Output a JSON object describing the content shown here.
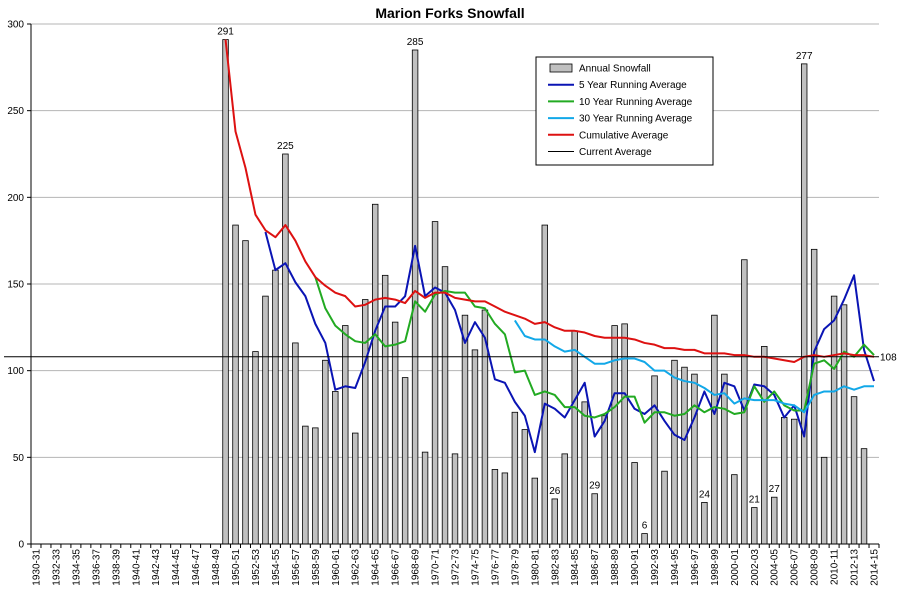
{
  "chart_data": {
    "type": "bar",
    "title": "Marion Forks Snowfall",
    "xlabel": "",
    "ylabel": "",
    "ylim": [
      0,
      300
    ],
    "yticks": [
      0,
      50,
      100,
      150,
      200,
      250,
      300
    ],
    "seasons": [
      "1930-31",
      "1931-32",
      "1932-33",
      "1933-34",
      "1934-35",
      "1935-36",
      "1936-37",
      "1937-38",
      "1938-39",
      "1939-40",
      "1940-41",
      "1941-42",
      "1942-43",
      "1943-44",
      "1944-45",
      "1945-46",
      "1946-47",
      "1947-48",
      "1948-49",
      "1949-50",
      "1950-51",
      "1951-52",
      "1952-53",
      "1953-54",
      "1954-55",
      "1955-56",
      "1956-57",
      "1957-58",
      "1958-59",
      "1959-60",
      "1960-61",
      "1961-62",
      "1962-63",
      "1963-64",
      "1964-65",
      "1965-66",
      "1966-67",
      "1967-68",
      "1968-69",
      "1969-70",
      "1970-71",
      "1971-72",
      "1972-73",
      "1973-74",
      "1974-75",
      "1975-76",
      "1976-77",
      "1977-78",
      "1978-79",
      "1979-80",
      "1980-81",
      "1981-82",
      "1982-83",
      "1983-84",
      "1984-85",
      "1985-86",
      "1986-87",
      "1987-88",
      "1988-89",
      "1989-90",
      "1990-91",
      "1991-92",
      "1992-93",
      "1993-94",
      "1994-95",
      "1995-96",
      "1996-97",
      "1997-98",
      "1998-99",
      "1999-00",
      "2000-01",
      "2001-02",
      "2002-03",
      "2003-04",
      "2004-05",
      "2005-06",
      "2006-07",
      "2007-08",
      "2008-09",
      "2009-10",
      "2010-11",
      "2011-12",
      "2012-13",
      "2013-14",
      "2014-15"
    ],
    "tick_labels": [
      "1930-31",
      "1932-33",
      "1934-35",
      "1936-37",
      "1938-39",
      "1940-41",
      "1942-43",
      "1944-45",
      "1946-47",
      "1948-49",
      "1950-51",
      "1952-53",
      "1954-55",
      "1956-57",
      "1958-59",
      "1960-61",
      "1962-63",
      "1964-65",
      "1966-67",
      "1968-69",
      "1970-71",
      "1972-73",
      "1974-75",
      "1976-77",
      "1978-79",
      "1980-81",
      "1982-83",
      "1984-85",
      "1986-87",
      "1988-89",
      "1990-91",
      "1992-93",
      "1994-95",
      "1996-97",
      "1998-99",
      "2000-01",
      "2002-03",
      "2004-05",
      "2006-07",
      "2008-09",
      "2010-11",
      "2012-13",
      "2014-15"
    ],
    "series": [
      {
        "name": "Annual Snowfall",
        "kind": "bar",
        "color": "#c0c0c0",
        "values": [
          null,
          null,
          null,
          null,
          null,
          null,
          null,
          null,
          null,
          null,
          null,
          null,
          null,
          null,
          null,
          null,
          null,
          null,
          null,
          291,
          184,
          175,
          111,
          143,
          158,
          225,
          116,
          68,
          67,
          106,
          88,
          126,
          64,
          141,
          196,
          155,
          128,
          96,
          285,
          53,
          186,
          160,
          52,
          132,
          112,
          135,
          43,
          41,
          76,
          66,
          38,
          184,
          26,
          52,
          123,
          82,
          29,
          74,
          126,
          127,
          47,
          6,
          97,
          42,
          106,
          102,
          98,
          24,
          132,
          98,
          40,
          164,
          21,
          114,
          27,
          73,
          72,
          277,
          170,
          50,
          143,
          138,
          85,
          55,
          null
        ]
      },
      {
        "name": "5 Year Running Average",
        "kind": "line",
        "color": "#0a14b4",
        "values": [
          null,
          null,
          null,
          null,
          null,
          null,
          null,
          null,
          null,
          null,
          null,
          null,
          null,
          null,
          null,
          null,
          null,
          null,
          null,
          null,
          null,
          null,
          null,
          180,
          158,
          162,
          151,
          143,
          127,
          116,
          89,
          91,
          90,
          105,
          123,
          137,
          137,
          143,
          172,
          143,
          148,
          145,
          135,
          116,
          128,
          119,
          95,
          93,
          82,
          74,
          53,
          81,
          78,
          73,
          83,
          93,
          62,
          71,
          87,
          87,
          78,
          75,
          80,
          71,
          63,
          60,
          73,
          88,
          75,
          93,
          91,
          77,
          92,
          91,
          86,
          73,
          80,
          62,
          111,
          124,
          129,
          141,
          155,
          112,
          94
        ]
      },
      {
        "name": "10 Year Running Average",
        "kind": "line",
        "color": "#22aa22",
        "values": [
          null,
          null,
          null,
          null,
          null,
          null,
          null,
          null,
          null,
          null,
          null,
          null,
          null,
          null,
          null,
          null,
          null,
          null,
          null,
          null,
          null,
          null,
          null,
          null,
          null,
          null,
          null,
          null,
          154,
          136,
          126,
          121,
          117,
          116,
          121,
          114,
          115,
          117,
          140,
          134,
          144,
          146,
          145,
          145,
          137,
          136,
          127,
          121,
          99,
          100,
          86,
          88,
          86,
          79,
          79,
          74,
          73,
          75,
          79,
          85,
          85,
          70,
          76,
          76,
          74,
          75,
          80,
          76,
          79,
          78,
          75,
          76,
          91,
          82,
          88,
          80,
          77,
          77,
          104,
          106,
          101,
          111,
          108,
          115,
          109
        ]
      },
      {
        "name": "30 Year Running Average",
        "kind": "line",
        "color": "#12a8e8",
        "values": [
          null,
          null,
          null,
          null,
          null,
          null,
          null,
          null,
          null,
          null,
          null,
          null,
          null,
          null,
          null,
          null,
          null,
          null,
          null,
          null,
          null,
          null,
          null,
          null,
          null,
          null,
          null,
          null,
          null,
          null,
          null,
          null,
          null,
          null,
          null,
          null,
          null,
          null,
          null,
          null,
          null,
          null,
          null,
          null,
          null,
          null,
          null,
          null,
          129,
          120,
          118,
          118,
          114,
          111,
          112,
          108,
          104,
          104,
          106,
          107,
          107,
          105,
          100,
          100,
          96,
          94,
          93,
          90,
          86,
          87,
          81,
          84,
          83,
          83,
          83,
          81,
          80,
          76,
          86,
          88,
          88,
          91,
          89,
          91,
          91
        ]
      },
      {
        "name": "Cumulative Average",
        "kind": "line",
        "color": "#dd1111",
        "values": [
          null,
          null,
          null,
          null,
          null,
          null,
          null,
          null,
          null,
          null,
          null,
          null,
          null,
          null,
          null,
          null,
          null,
          null,
          null,
          291,
          238,
          217,
          190,
          181,
          177,
          184,
          175,
          163,
          154,
          149,
          145,
          143,
          137,
          138,
          141,
          142,
          141,
          139,
          146,
          142,
          145,
          145,
          142,
          141,
          140,
          140,
          137,
          134,
          132,
          130,
          127,
          128,
          125,
          123,
          123,
          122,
          120,
          119,
          119,
          119,
          118,
          116,
          115,
          113,
          113,
          112,
          112,
          110,
          110,
          110,
          109,
          109,
          108,
          108,
          107,
          106,
          105,
          108,
          109,
          108,
          109,
          110,
          109,
          109,
          108
        ]
      }
    ],
    "current_average": {
      "name": "Current Average",
      "value": 108,
      "label": "108",
      "color": "#000000"
    },
    "annotations": [
      {
        "season": "1949-50",
        "label": "291"
      },
      {
        "season": "1955-56",
        "label": "225"
      },
      {
        "season": "1968-69",
        "label": "285"
      },
      {
        "season": "1982-83",
        "label": "26"
      },
      {
        "season": "1986-87",
        "label": "29"
      },
      {
        "season": "1991-92",
        "label": "6"
      },
      {
        "season": "1997-98",
        "label": "24"
      },
      {
        "season": "2002-03",
        "label": "21"
      },
      {
        "season": "2004-05",
        "label": "27"
      },
      {
        "season": "2007-08",
        "label": "277"
      }
    ],
    "legend": {
      "position": "top-right",
      "entries": [
        "Annual Snowfall",
        "5 Year Running Average",
        "10 Year Running Average",
        "30 Year Running Average",
        "Cumulative Average",
        "Current Average"
      ]
    },
    "grid": true
  }
}
